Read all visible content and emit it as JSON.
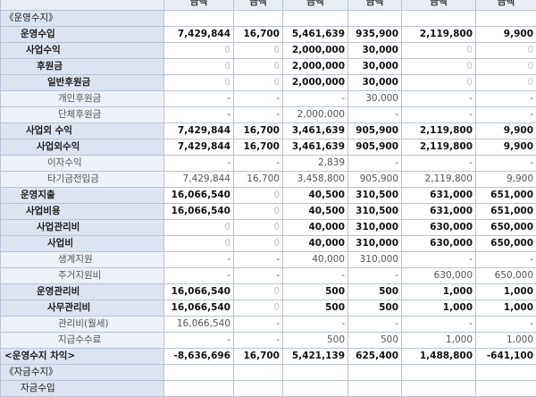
{
  "columns": [
    "",
    "금액",
    "금액",
    "금액",
    "금액",
    "금액",
    "금액"
  ],
  "rows": [
    {
      "label": "《운영수지》",
      "indent": 0,
      "values": [
        "",
        "",
        "",
        "",
        "",
        ""
      ]
    },
    {
      "label": "운영수입",
      "indent": 1,
      "values": [
        "7,429,844",
        "16,700",
        "5,461,639",
        "935,900",
        "2,119,800",
        "9,900"
      ]
    },
    {
      "label": "사업수익",
      "indent": 2,
      "values": [
        "0",
        "0",
        "2,000,000",
        "30,000",
        "0",
        "0"
      ]
    },
    {
      "label": "후원금",
      "indent": 3,
      "values": [
        "0",
        "0",
        "2,000,000",
        "30,000",
        "0",
        "0"
      ]
    },
    {
      "label": "일반후원금",
      "indent": 4,
      "values": [
        "0",
        "0",
        "2,000,000",
        "30,000",
        "0",
        "0"
      ]
    },
    {
      "label": "개인후원금",
      "indent": 5,
      "values": [
        "-",
        "-",
        "-",
        "30,000",
        "-",
        "-"
      ]
    },
    {
      "label": "단체후원금",
      "indent": 5,
      "values": [
        "-",
        "-",
        "2,000,000",
        "-",
        "-",
        "-"
      ]
    },
    {
      "label": "사업외 수익",
      "indent": 2,
      "values": [
        "7,429,844",
        "16,700",
        "3,461,639",
        "905,900",
        "2,119,800",
        "9,900"
      ]
    },
    {
      "label": "사업외수익",
      "indent": 3,
      "values": [
        "7,429,844",
        "16,700",
        "3,461,639",
        "905,900",
        "2,119,800",
        "9,900"
      ]
    },
    {
      "label": "이자수익",
      "indent": 4,
      "values": [
        "-",
        "-",
        "2,839",
        "-",
        "-",
        "-"
      ]
    },
    {
      "label": "타기금전입금",
      "indent": 4,
      "values": [
        "7,429,844",
        "16,700",
        "3,458,800",
        "905,900",
        "2,119,800",
        "9,900"
      ]
    },
    {
      "label": "운영지출",
      "indent": 1,
      "values": [
        "16,066,540",
        "0",
        "40,500",
        "310,500",
        "631,000",
        "651,000"
      ]
    },
    {
      "label": "사업비용",
      "indent": 2,
      "values": [
        "16,066,540",
        "0",
        "40,500",
        "310,500",
        "631,000",
        "651,000"
      ]
    },
    {
      "label": "사업관리비",
      "indent": 3,
      "values": [
        "0",
        "0",
        "40,000",
        "310,000",
        "630,000",
        "650,000"
      ]
    },
    {
      "label": "사업비",
      "indent": 4,
      "values": [
        "0",
        "0",
        "40,000",
        "310,000",
        "630,000",
        "650,000"
      ]
    },
    {
      "label": "생계지원",
      "indent": 5,
      "values": [
        "-",
        "-",
        "40,000",
        "310,000",
        "-",
        "-"
      ]
    },
    {
      "label": "주거지원비",
      "indent": 5,
      "values": [
        "-",
        "-",
        "-",
        "-",
        "630,000",
        "650,000"
      ]
    },
    {
      "label": "운영관리비",
      "indent": 3,
      "values": [
        "16,066,540",
        "0",
        "500",
        "500",
        "1,000",
        "1,000"
      ]
    },
    {
      "label": "사무관리비",
      "indent": 4,
      "values": [
        "16,066,540",
        "0",
        "500",
        "500",
        "1,000",
        "1,000"
      ]
    },
    {
      "label": "관리비(월세)",
      "indent": 5,
      "values": [
        "16,066,540",
        "-",
        "-",
        "-",
        "-",
        "-"
      ]
    },
    {
      "label": "지급수수료",
      "indent": 5,
      "values": [
        "-",
        "-",
        "500",
        "500",
        "1,000",
        "1,000"
      ]
    },
    {
      "label": "<운영수지 차익>",
      "indent": 0,
      "values": [
        "-8,636,696",
        "16,700",
        "5,421,139",
        "625,400",
        "1,488,800",
        "-641,100"
      ]
    },
    {
      "label": "《자금수지》",
      "indent": 0,
      "values": [
        "",
        "",
        "",
        "",
        "",
        ""
      ]
    },
    {
      "label": "자금수입",
      "indent": 1,
      "values": [
        "",
        "",
        "",
        "",
        "",
        ""
      ]
    }
  ]
}
